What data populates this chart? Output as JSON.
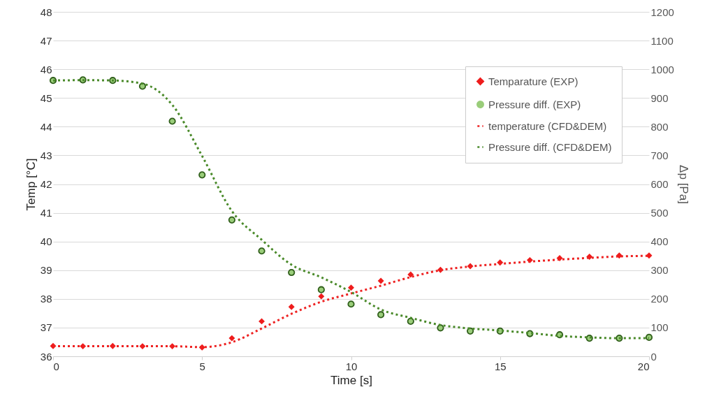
{
  "chart_data": {
    "type": "line",
    "xlabel": "Time [s]",
    "ylabel": "Temp [°C]",
    "y2label": "Δp [Pa]",
    "xlim": [
      0,
      20
    ],
    "xticks": [
      0,
      5,
      10,
      15,
      20
    ],
    "ylim": [
      36,
      48
    ],
    "yticks": [
      36,
      37,
      38,
      39,
      40,
      41,
      42,
      43,
      44,
      45,
      46,
      47,
      48
    ],
    "y2lim": [
      0,
      1200
    ],
    "y2ticks": [
      0,
      100,
      200,
      300,
      400,
      500,
      600,
      700,
      800,
      900,
      1000,
      1100,
      1200
    ],
    "grid": "y",
    "legend": "top right",
    "x": [
      0,
      1,
      2,
      3,
      4,
      5,
      6,
      7,
      8,
      9,
      10,
      11,
      12,
      13,
      14,
      15,
      16,
      17,
      18,
      19,
      20
    ],
    "series": [
      {
        "name": "Temparature (EXP)",
        "type": "scatter",
        "marker": "diamond",
        "color": "#ee1c1c",
        "values": [
          36.36,
          36.35,
          36.36,
          36.35,
          36.35,
          36.31,
          36.63,
          37.22,
          37.72,
          38.09,
          38.39,
          38.63,
          38.85,
          39.01,
          39.14,
          39.27,
          39.35,
          39.42,
          39.47,
          39.51,
          39.51
        ]
      },
      {
        "name": "Pressure diff. (EXP)",
        "type": "scatter",
        "marker": "circle",
        "axis": "y2",
        "color": "#9acd7a",
        "values": [
          961,
          963,
          961,
          941,
          819,
          632,
          475,
          367,
          292,
          232,
          182,
          145,
          122,
          99,
          88,
          88,
          79,
          75,
          63,
          63,
          66
        ]
      },
      {
        "name": "temperature (CFD&DEM)",
        "type": "line",
        "line_style": "dotted",
        "color": "#ee2222",
        "values": [
          36.35,
          36.35,
          36.35,
          36.35,
          36.35,
          36.32,
          36.49,
          36.97,
          37.48,
          37.9,
          38.19,
          38.46,
          38.76,
          39.0,
          39.13,
          39.22,
          39.3,
          39.37,
          39.43,
          39.48,
          39.5
        ]
      },
      {
        "name": "Pressure diff. (CFD&DEM)",
        "type": "line",
        "line_style": "dotted",
        "axis": "y2",
        "color": "#4a8a2a",
        "values": [
          961,
          962,
          961,
          950,
          876,
          698,
          506,
          406,
          319,
          275,
          224,
          163,
          134,
          109,
          97,
          90,
          81,
          71,
          66,
          63,
          63
        ]
      }
    ]
  }
}
